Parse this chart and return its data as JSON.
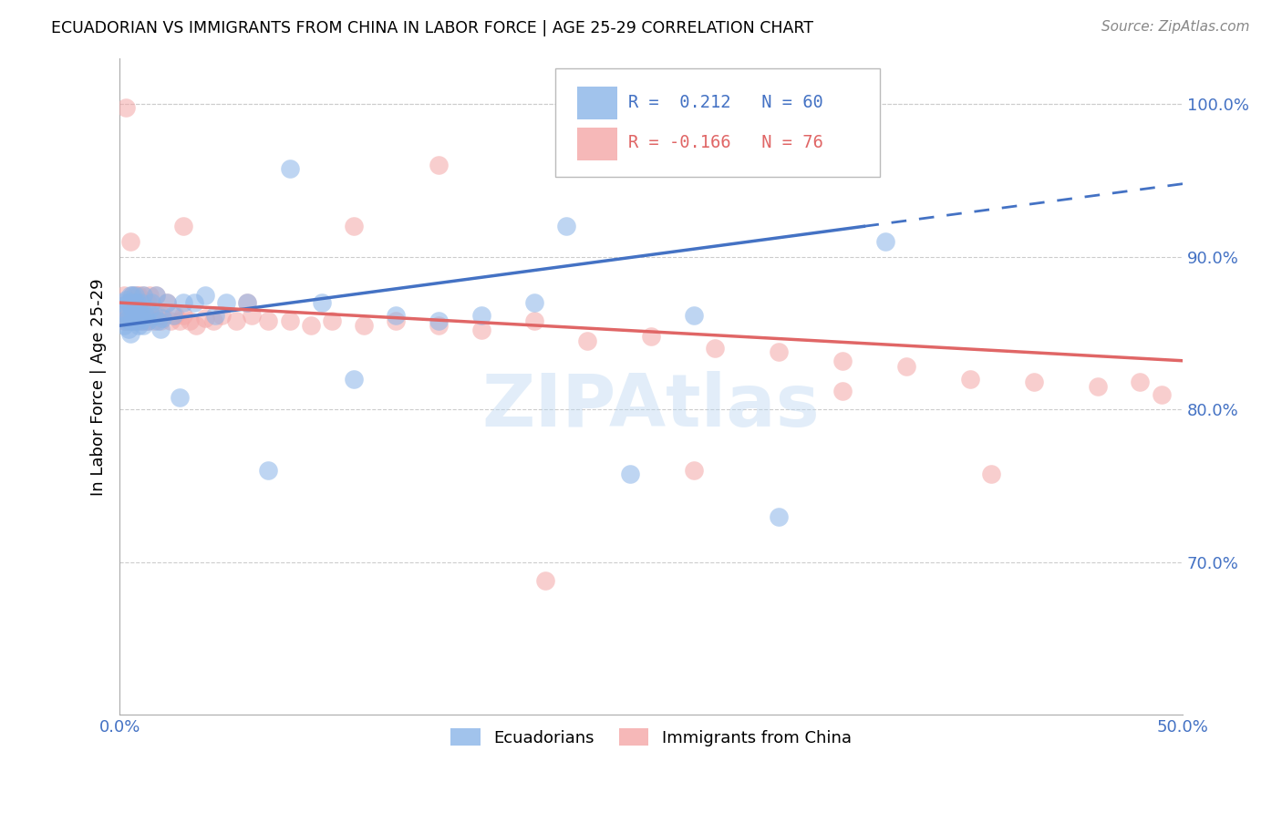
{
  "title": "ECUADORIAN VS IMMIGRANTS FROM CHINA IN LABOR FORCE | AGE 25-29 CORRELATION CHART",
  "source": "Source: ZipAtlas.com",
  "ylabel": "In Labor Force | Age 25-29",
  "xlim": [
    0.0,
    0.5
  ],
  "ylim": [
    0.6,
    1.03
  ],
  "yticks": [
    0.7,
    0.8,
    0.9,
    1.0
  ],
  "ytick_labels": [
    "70.0%",
    "80.0%",
    "90.0%",
    "100.0%"
  ],
  "xticks": [
    0.0,
    0.1,
    0.2,
    0.3,
    0.4,
    0.5
  ],
  "xtick_labels": [
    "0.0%",
    "",
    "",
    "",
    "",
    "50.0%"
  ],
  "blue_color": "#8ab4e8",
  "pink_color": "#f4a7a7",
  "line_blue": "#4472c4",
  "line_pink": "#e06666",
  "axis_color": "#4472c4",
  "grid_color": "#cccccc",
  "ecu_x": [
    0.001,
    0.002,
    0.002,
    0.003,
    0.003,
    0.003,
    0.004,
    0.004,
    0.004,
    0.005,
    0.005,
    0.005,
    0.005,
    0.006,
    0.006,
    0.006,
    0.007,
    0.007,
    0.007,
    0.008,
    0.008,
    0.008,
    0.009,
    0.009,
    0.01,
    0.01,
    0.01,
    0.011,
    0.011,
    0.012,
    0.013,
    0.014,
    0.015,
    0.016,
    0.017,
    0.018,
    0.019,
    0.02,
    0.022,
    0.025,
    0.028,
    0.03,
    0.035,
    0.04,
    0.045,
    0.05,
    0.06,
    0.07,
    0.08,
    0.095,
    0.11,
    0.13,
    0.15,
    0.17,
    0.195,
    0.21,
    0.24,
    0.27,
    0.31,
    0.36
  ],
  "ecu_y": [
    0.87,
    0.868,
    0.855,
    0.872,
    0.858,
    0.862,
    0.87,
    0.86,
    0.853,
    0.875,
    0.858,
    0.868,
    0.85,
    0.875,
    0.858,
    0.865,
    0.87,
    0.86,
    0.875,
    0.858,
    0.862,
    0.87,
    0.855,
    0.865,
    0.87,
    0.858,
    0.862,
    0.855,
    0.875,
    0.862,
    0.858,
    0.865,
    0.87,
    0.862,
    0.875,
    0.858,
    0.853,
    0.86,
    0.87,
    0.862,
    0.808,
    0.87,
    0.87,
    0.875,
    0.862,
    0.87,
    0.87,
    0.76,
    0.958,
    0.87,
    0.82,
    0.862,
    0.858,
    0.862,
    0.87,
    0.92,
    0.758,
    0.862,
    0.73,
    0.91
  ],
  "china_x": [
    0.001,
    0.002,
    0.002,
    0.003,
    0.003,
    0.004,
    0.004,
    0.004,
    0.005,
    0.005,
    0.005,
    0.006,
    0.006,
    0.006,
    0.007,
    0.007,
    0.008,
    0.008,
    0.008,
    0.009,
    0.009,
    0.01,
    0.01,
    0.011,
    0.011,
    0.012,
    0.012,
    0.013,
    0.013,
    0.014,
    0.015,
    0.016,
    0.017,
    0.018,
    0.019,
    0.02,
    0.022,
    0.024,
    0.026,
    0.028,
    0.03,
    0.033,
    0.036,
    0.04,
    0.044,
    0.048,
    0.055,
    0.062,
    0.07,
    0.08,
    0.09,
    0.1,
    0.115,
    0.13,
    0.15,
    0.17,
    0.195,
    0.22,
    0.25,
    0.28,
    0.31,
    0.34,
    0.37,
    0.4,
    0.43,
    0.46,
    0.49,
    0.03,
    0.06,
    0.11,
    0.15,
    0.2,
    0.27,
    0.34,
    0.41,
    0.48
  ],
  "china_y": [
    0.862,
    0.875,
    0.858,
    0.998,
    0.858,
    0.87,
    0.858,
    0.862,
    0.91,
    0.858,
    0.868,
    0.875,
    0.858,
    0.862,
    0.87,
    0.858,
    0.862,
    0.875,
    0.858,
    0.862,
    0.875,
    0.858,
    0.87,
    0.862,
    0.875,
    0.858,
    0.862,
    0.87,
    0.858,
    0.875,
    0.862,
    0.858,
    0.875,
    0.862,
    0.858,
    0.862,
    0.87,
    0.858,
    0.862,
    0.858,
    0.862,
    0.858,
    0.855,
    0.86,
    0.858,
    0.862,
    0.858,
    0.862,
    0.858,
    0.858,
    0.855,
    0.858,
    0.855,
    0.858,
    0.855,
    0.852,
    0.858,
    0.845,
    0.848,
    0.84,
    0.838,
    0.832,
    0.828,
    0.82,
    0.818,
    0.815,
    0.81,
    0.92,
    0.87,
    0.92,
    0.96,
    0.688,
    0.76,
    0.812,
    0.758,
    0.818
  ]
}
